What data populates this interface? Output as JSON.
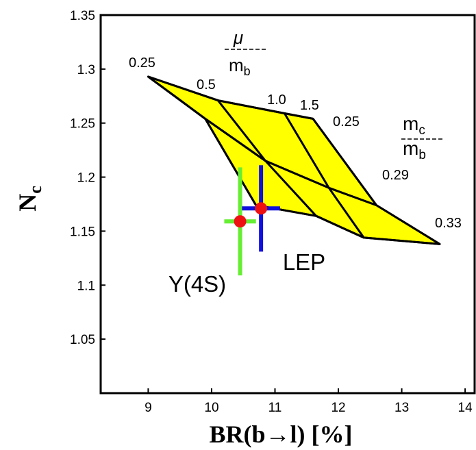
{
  "chart_data": {
    "type": "scatter",
    "xlabel": "BR(b→l) [%]",
    "ylabel_main": "N",
    "ylabel_sub": "c",
    "xlim": [
      8.25,
      14.15
    ],
    "ylim": [
      1.0,
      1.35
    ],
    "xticks": [
      "9",
      "10",
      "11",
      "12",
      "13",
      "14"
    ],
    "yticks": [
      "1.05",
      "1.1",
      "1.15",
      "1.2",
      "1.25",
      "1.3",
      "1.35"
    ],
    "grid": false,
    "band_color": "#ffff00",
    "mu_over_mb_lines": [
      {
        "label": "0.25",
        "points": [
          [
            9.0,
            1.293
          ],
          [
            9.9,
            1.254
          ],
          [
            10.85,
            1.215
          ],
          [
            11.85,
            1.19
          ],
          [
            12.6,
            1.174
          ]
        ]
      },
      {
        "label": "0.5",
        "points": [
          [
            10.1,
            1.271
          ],
          [
            10.85,
            1.215
          ],
          [
            11.65,
            1.164
          ],
          [
            12.4,
            1.144
          ]
        ]
      },
      {
        "label": "1.0",
        "points": [
          [
            11.15,
            1.259
          ],
          [
            11.85,
            1.19
          ],
          [
            12.4,
            1.144
          ]
        ]
      },
      {
        "label": "1.5",
        "points": [
          [
            11.6,
            1.254
          ],
          [
            12.6,
            1.174
          ],
          [
            13.6,
            1.138
          ]
        ]
      }
    ],
    "mc_over_mb_lines": [
      {
        "label": "0.25",
        "points": [
          [
            9.0,
            1.293
          ],
          [
            10.1,
            1.271
          ],
          [
            11.15,
            1.259
          ],
          [
            11.6,
            1.254
          ]
        ]
      },
      {
        "label": "0.29",
        "points": [
          [
            9.9,
            1.254
          ],
          [
            10.85,
            1.215
          ],
          [
            11.85,
            1.19
          ],
          [
            12.6,
            1.174
          ]
        ]
      },
      {
        "label": "0.33",
        "points": [
          [
            10.7,
            1.174
          ],
          [
            11.65,
            1.164
          ],
          [
            12.4,
            1.144
          ],
          [
            13.6,
            1.138
          ]
        ]
      }
    ],
    "boundary_left": [
      [
        9.0,
        1.293
      ],
      [
        9.9,
        1.254
      ],
      [
        10.7,
        1.174
      ]
    ],
    "param_labels": {
      "mu": {
        "num": "μ",
        "den": "m",
        "den_sub": "b"
      },
      "mc": {
        "num": "m",
        "num_sub": "c",
        "den": "m",
        "den_sub": "b"
      }
    },
    "measurements": [
      {
        "name": "Υ(4S)",
        "x": 10.45,
        "y": 1.159,
        "x_err": 0.25,
        "y_err": 0.05,
        "bar_color": "#66ee33",
        "point_color": "#ee1111"
      },
      {
        "name": "LEP",
        "x": 10.78,
        "y": 1.171,
        "x_err": 0.3,
        "y_err": 0.04,
        "bar_color": "#1111dd",
        "point_color": "#ee1111"
      }
    ]
  }
}
